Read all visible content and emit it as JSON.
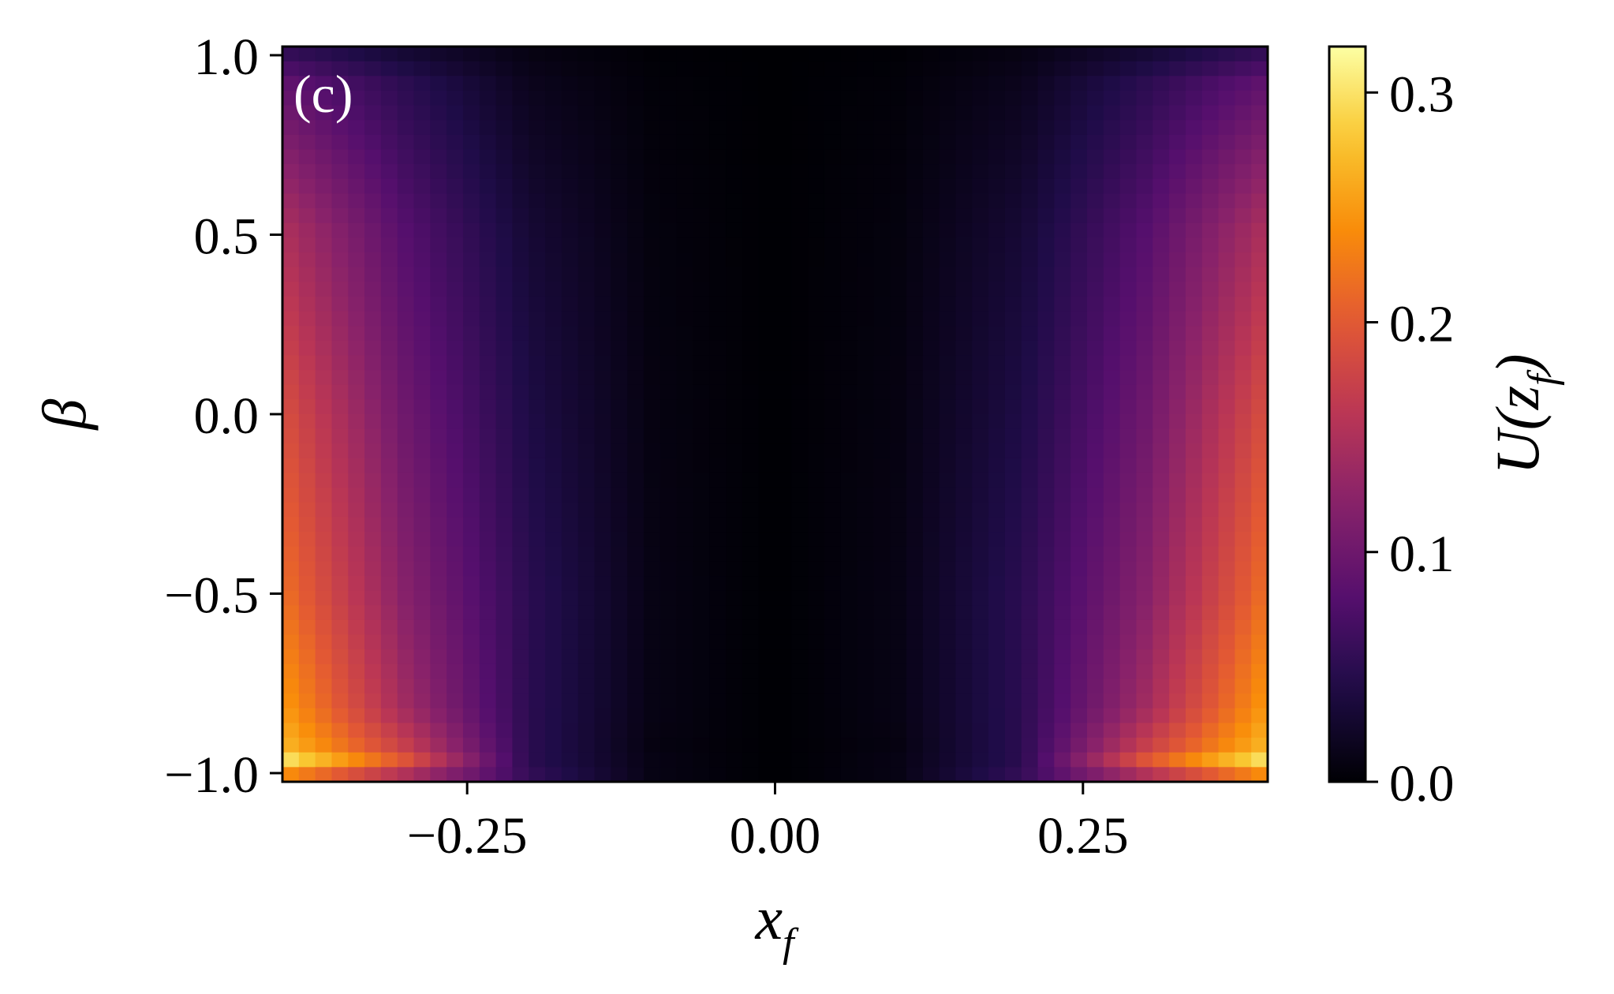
{
  "chart_data": {
    "type": "heatmap",
    "panel_label": "(c)",
    "colormap": "inferno",
    "x_axis": {
      "label_main": "x",
      "label_sub": "f",
      "range": [
        -0.4,
        0.4
      ],
      "ticks": [
        -0.25,
        0.0,
        0.25
      ],
      "tick_labels": [
        "−0.25",
        "0.00",
        "0.25"
      ]
    },
    "y_axis": {
      "label": "β",
      "range": [
        -1.0,
        1.0
      ],
      "ticks": [
        -1.0,
        -0.5,
        0.0,
        0.5,
        1.0
      ],
      "tick_labels": [
        "−1.0",
        "−0.5",
        "0.0",
        "0.5",
        "1.0"
      ]
    },
    "colorbar": {
      "label_main": "U(z",
      "label_sub": "f",
      "label_close": ")",
      "range": [
        0.0,
        0.32
      ],
      "ticks": [
        0.0,
        0.1,
        0.2,
        0.3
      ],
      "tick_labels": [
        "0.0",
        "0.1",
        "0.2",
        "0.3"
      ]
    },
    "grid": false,
    "x_values": [
      -0.4,
      -0.3,
      -0.2,
      -0.1,
      0.0,
      0.1,
      0.2,
      0.3,
      0.4
    ],
    "y_values": [
      -1.0,
      -0.95,
      -0.9,
      -0.8,
      -0.5,
      0.0,
      0.5,
      0.9,
      1.0
    ],
    "values": [
      [
        0.2,
        0.12,
        0.06,
        0.01,
        0.0,
        0.01,
        0.06,
        0.12,
        0.2
      ],
      [
        0.31,
        0.2,
        0.05,
        0.01,
        0.0,
        0.01,
        0.05,
        0.2,
        0.31
      ],
      [
        0.27,
        0.17,
        0.05,
        0.008,
        0.0,
        0.008,
        0.05,
        0.17,
        0.27
      ],
      [
        0.25,
        0.14,
        0.05,
        0.01,
        0.0,
        0.01,
        0.05,
        0.14,
        0.25
      ],
      [
        0.22,
        0.12,
        0.05,
        0.01,
        0.0,
        0.01,
        0.05,
        0.12,
        0.22
      ],
      [
        0.19,
        0.1,
        0.04,
        0.008,
        0.0,
        0.008,
        0.04,
        0.1,
        0.19
      ],
      [
        0.15,
        0.08,
        0.03,
        0.006,
        0.0,
        0.006,
        0.03,
        0.08,
        0.15
      ],
      [
        0.09,
        0.05,
        0.015,
        0.003,
        0.0,
        0.003,
        0.015,
        0.05,
        0.09
      ],
      [
        0.05,
        0.025,
        0.008,
        0.001,
        0.0,
        0.001,
        0.008,
        0.025,
        0.05
      ]
    ]
  }
}
